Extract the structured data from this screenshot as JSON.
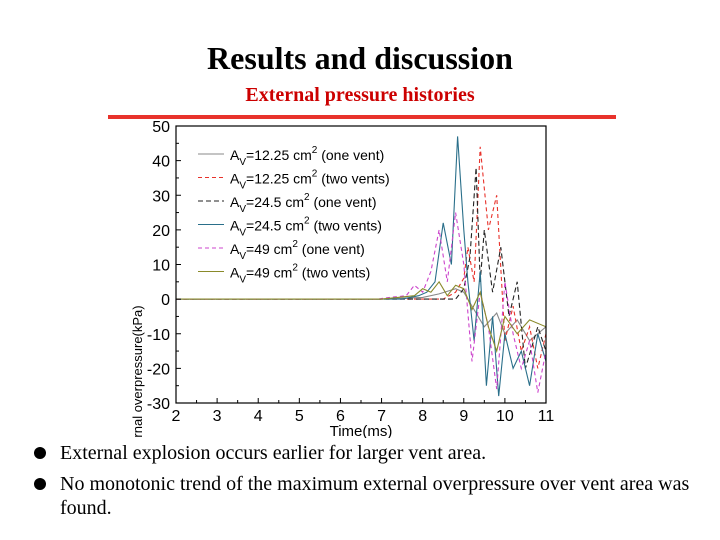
{
  "slide": {
    "title": "Results and discussion",
    "subtitle": "External pressure histories",
    "accent_color": "#e8322b",
    "bullets": [
      "External explosion occurs earlier for larger vent area.",
      "No monotonic trend of the maximum external overpressure over vent area was found."
    ]
  },
  "chart_data": {
    "type": "line",
    "xlabel": "Time(ms)",
    "ylabel": "External overpressure(kPa)",
    "xlim": [
      2,
      11
    ],
    "ylim": [
      -30,
      50
    ],
    "xticks": [
      "2",
      "3",
      "4",
      "5",
      "6",
      "7",
      "8",
      "9",
      "10",
      "11"
    ],
    "yticks": [
      "50",
      "40",
      "30",
      "20",
      "10",
      "0",
      "-10",
      "-20",
      "-30"
    ],
    "legend_position": "top-left",
    "grid": false,
    "series": [
      {
        "name": "Av=12.25 cm² (one vent)",
        "label_main": "A",
        "label_sub": "V",
        "label_rest": "=12.25 cm",
        "label_sup": "2",
        "label_tail": " (one vent)",
        "color": "#888888",
        "dash": "",
        "x": [
          2,
          7.0,
          8.0,
          8.4,
          8.8,
          9.0,
          9.2,
          9.5,
          9.8,
          10.0,
          10.3,
          10.6,
          11
        ],
        "y": [
          0,
          0,
          0.5,
          1.5,
          3,
          2,
          -2,
          -8,
          -4,
          -10,
          -6,
          -12,
          -8
        ]
      },
      {
        "name": "Av=12.25 cm² (two vents)",
        "label_main": "A",
        "label_sub": "V",
        "label_rest": "=12.25 cm",
        "label_sup": "2",
        "label_tail": " (two vents)",
        "color": "#e8322b",
        "dash": "4,3",
        "x": [
          2,
          8.5,
          8.8,
          9.0,
          9.1,
          9.25,
          9.4,
          9.6,
          9.8,
          10.0,
          10.2,
          10.4,
          10.6,
          10.8,
          11
        ],
        "y": [
          0,
          0,
          2,
          6,
          15,
          5,
          44,
          20,
          30,
          -12,
          -2,
          -15,
          -8,
          -20,
          -10
        ]
      },
      {
        "name": "Av=24.5 cm² (one vent)",
        "label_main": "A",
        "label_sub": "V",
        "label_rest": "=24.5 cm",
        "label_sup": "2",
        "label_tail": " (one vent)",
        "color": "#222222",
        "dash": "5,3",
        "x": [
          2,
          8.8,
          9.0,
          9.15,
          9.3,
          9.4,
          9.5,
          9.7,
          9.9,
          10.1,
          10.3,
          10.5,
          10.8,
          11
        ],
        "y": [
          0,
          0,
          3,
          12,
          38,
          5,
          20,
          2,
          15,
          -5,
          5,
          -20,
          -8,
          -15
        ]
      },
      {
        "name": "Av=24.5 cm² (two vents)",
        "label_main": "A",
        "label_sub": "V",
        "label_rest": "=24.5 cm",
        "label_sup": "2",
        "label_tail": " (two vents)",
        "color": "#2a6f8a",
        "dash": "",
        "x": [
          2,
          7.5,
          7.9,
          8.1,
          8.3,
          8.5,
          8.7,
          8.85,
          9.0,
          9.1,
          9.25,
          9.4,
          9.55,
          9.7,
          9.85,
          10.0,
          10.2,
          10.4,
          10.6,
          10.8,
          11
        ],
        "y": [
          0,
          0,
          1,
          2,
          5,
          22,
          10,
          47,
          20,
          5,
          -12,
          8,
          -25,
          -5,
          -28,
          -10,
          -20,
          -15,
          -25,
          -10,
          -18
        ]
      },
      {
        "name": "Av=49 cm² (one vent)",
        "label_main": "A",
        "label_sub": "V",
        "label_rest": "=49 cm",
        "label_sup": "2",
        "label_tail": " (one vent)",
        "color": "#cc44cc",
        "dash": "4,3",
        "x": [
          2,
          6.9,
          7.2,
          7.6,
          7.8,
          8.0,
          8.2,
          8.4,
          8.6,
          8.8,
          9.0,
          9.2,
          9.4,
          9.6,
          9.8,
          10.0,
          10.2,
          10.4,
          10.6,
          10.8,
          11
        ],
        "y": [
          0,
          0,
          0.5,
          1,
          4,
          2,
          8,
          20,
          5,
          25,
          10,
          -18,
          2,
          -8,
          -26,
          5,
          -10,
          -20,
          -12,
          -27,
          -15
        ]
      },
      {
        "name": "Av=49 cm² (two vents)",
        "label_main": "A",
        "label_sub": "V",
        "label_rest": "=49 cm",
        "label_sup": "2",
        "label_tail": " (two vents)",
        "color": "#8a8a2a",
        "dash": "",
        "x": [
          2,
          7.0,
          7.4,
          7.8,
          8.0,
          8.2,
          8.4,
          8.6,
          8.8,
          9.0,
          9.2,
          9.4,
          9.6,
          9.8,
          10.0,
          10.3,
          10.6,
          11
        ],
        "y": [
          0,
          0,
          0.5,
          1,
          3,
          2,
          5,
          1,
          4,
          3,
          -3,
          2,
          -8,
          -15,
          -5,
          -10,
          -6,
          -8
        ]
      }
    ]
  }
}
